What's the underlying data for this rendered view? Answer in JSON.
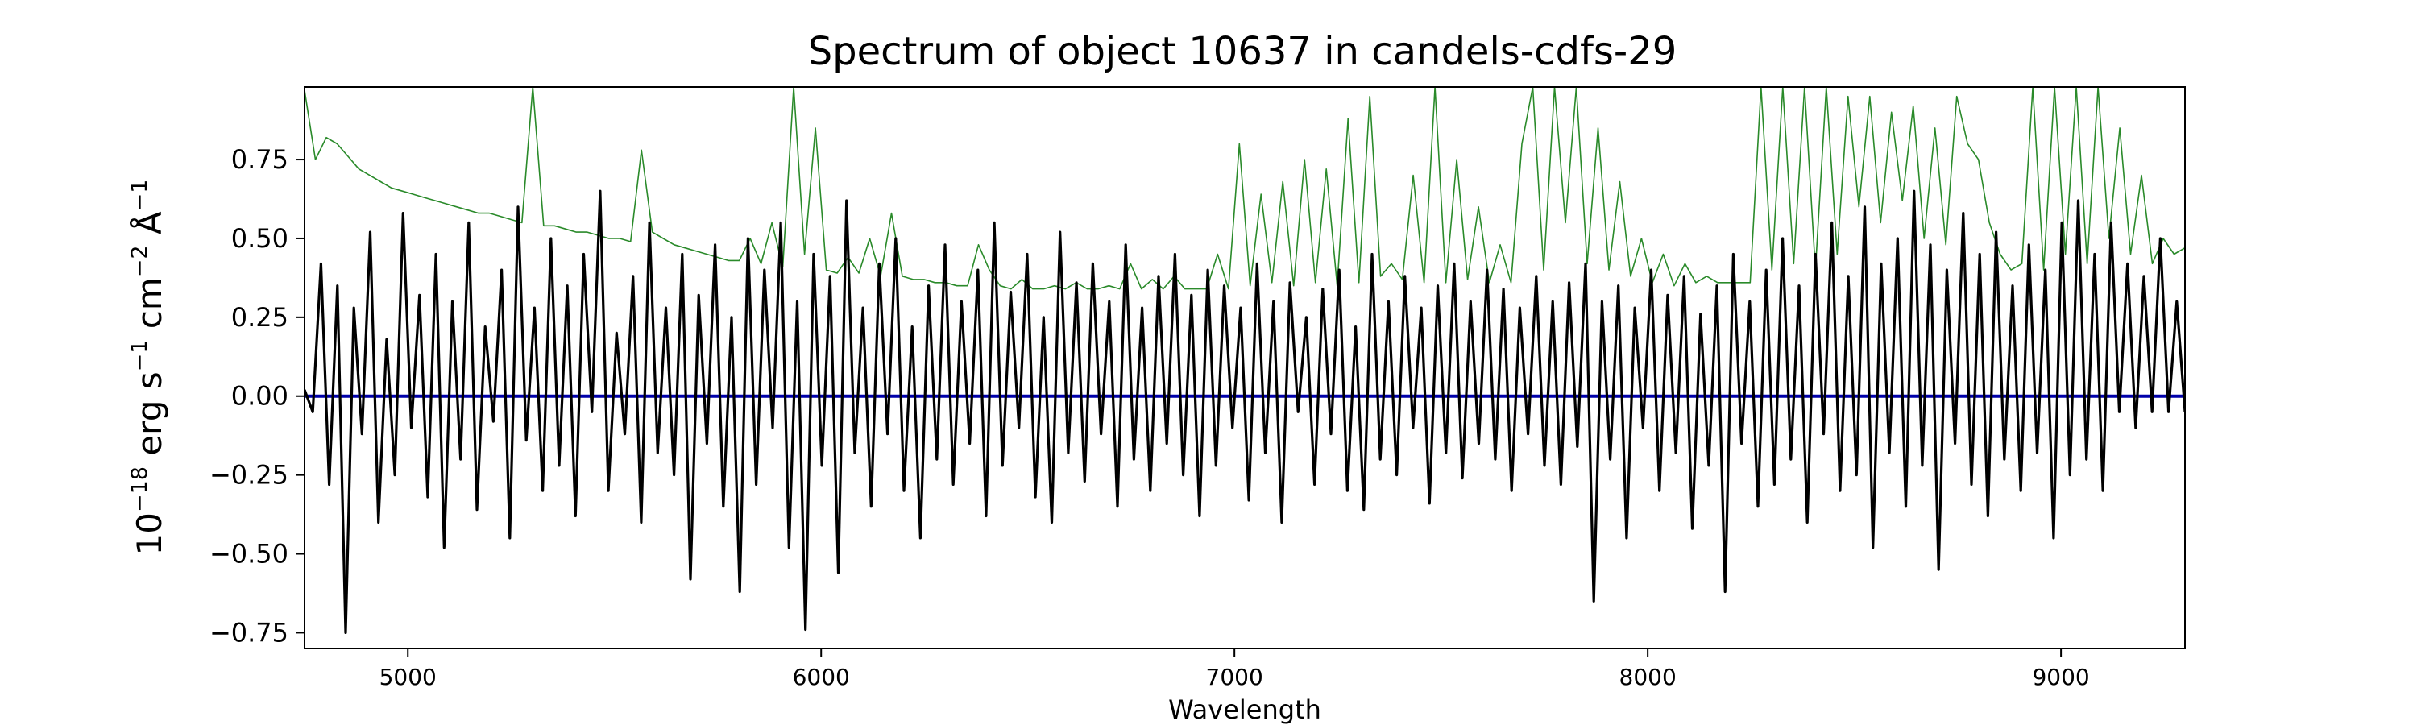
{
  "chart_data": {
    "type": "line",
    "title": "Spectrum of object 10637 in candels-cdfs-29",
    "xlabel": "Wavelength",
    "ylabel": {
      "base": "10",
      "exp1": "−18",
      "erg": " erg s",
      "exp2": "−1",
      "cm": " cm",
      "exp3": "−2",
      "ang": " Å",
      "exp4": "−1"
    },
    "xlim": [
      4750,
      9300
    ],
    "ylim": [
      -0.8,
      0.98
    ],
    "xticks": [
      5000,
      6000,
      7000,
      8000,
      9000
    ],
    "xtick_labels": [
      "5000",
      "6000",
      "7000",
      "8000",
      "9000"
    ],
    "yticks": [
      -0.75,
      -0.5,
      -0.25,
      0.0,
      0.25,
      0.5,
      0.75
    ],
    "ytick_labels": [
      "−0.75",
      "−0.50",
      "−0.25",
      "0.00",
      "0.25",
      "0.50",
      "0.75"
    ],
    "grid": false,
    "series": [
      {
        "role": "flux",
        "color": "#000000",
        "x_start": 4750,
        "x_end": 9300,
        "values": [
          0.02,
          -0.05,
          0.42,
          -0.28,
          0.35,
          -0.75,
          0.28,
          -0.12,
          0.52,
          -0.4,
          0.18,
          -0.25,
          0.58,
          -0.1,
          0.32,
          -0.32,
          0.45,
          -0.48,
          0.3,
          -0.2,
          0.55,
          -0.36,
          0.22,
          -0.08,
          0.4,
          -0.45,
          0.6,
          -0.14,
          0.28,
          -0.3,
          0.5,
          -0.22,
          0.35,
          -0.38,
          0.45,
          -0.05,
          0.65,
          -0.3,
          0.2,
          -0.12,
          0.38,
          -0.4,
          0.55,
          -0.18,
          0.28,
          -0.25,
          0.45,
          -0.58,
          0.32,
          -0.15,
          0.48,
          -0.35,
          0.25,
          -0.62,
          0.5,
          -0.28,
          0.4,
          -0.1,
          0.55,
          -0.48,
          0.3,
          -0.74,
          0.45,
          -0.22,
          0.38,
          -0.56,
          0.62,
          -0.18,
          0.28,
          -0.35,
          0.42,
          -0.12,
          0.5,
          -0.3,
          0.22,
          -0.45,
          0.35,
          -0.2,
          0.48,
          -0.28,
          0.3,
          -0.15,
          0.4,
          -0.38,
          0.55,
          -0.22,
          0.33,
          -0.1,
          0.45,
          -0.32,
          0.25,
          -0.4,
          0.52,
          -0.18,
          0.36,
          -0.27,
          0.42,
          -0.12,
          0.3,
          -0.35,
          0.48,
          -0.2,
          0.28,
          -0.3,
          0.38,
          -0.15,
          0.45,
          -0.25,
          0.32,
          -0.38,
          0.4,
          -0.22,
          0.35,
          -0.1,
          0.28,
          -0.33,
          0.42,
          -0.18,
          0.3,
          -0.4,
          0.36,
          -0.05,
          0.25,
          -0.28,
          0.34,
          -0.12,
          0.4,
          -0.3,
          0.22,
          -0.36,
          0.45,
          -0.2,
          0.3,
          -0.25,
          0.38,
          -0.1,
          0.28,
          -0.34,
          0.35,
          -0.18,
          0.42,
          -0.26,
          0.3,
          -0.15,
          0.4,
          -0.2,
          0.34,
          -0.3,
          0.28,
          -0.12,
          0.38,
          -0.22,
          0.3,
          -0.28,
          0.36,
          -0.16,
          0.42,
          -0.65,
          0.3,
          -0.2,
          0.35,
          -0.45,
          0.28,
          -0.1,
          0.4,
          -0.3,
          0.32,
          -0.18,
          0.38,
          -0.42,
          0.26,
          -0.22,
          0.35,
          -0.62,
          0.45,
          -0.15,
          0.3,
          -0.35,
          0.4,
          -0.28,
          0.5,
          -0.2,
          0.35,
          -0.4,
          0.45,
          -0.12,
          0.55,
          -0.3,
          0.38,
          -0.25,
          0.6,
          -0.48,
          0.42,
          -0.18,
          0.5,
          -0.35,
          0.65,
          -0.22,
          0.48,
          -0.55,
          0.4,
          -0.15,
          0.58,
          -0.28,
          0.45,
          -0.38,
          0.52,
          -0.2,
          0.35,
          -0.3,
          0.48,
          -0.18,
          0.4,
          -0.45,
          0.55,
          -0.25,
          0.62,
          -0.2,
          0.45,
          -0.3,
          0.55,
          -0.05,
          0.42,
          -0.1,
          0.38,
          -0.05,
          0.5,
          -0.05,
          0.3,
          -0.05
        ]
      },
      {
        "role": "error",
        "color": "#2a8a2a",
        "x_start": 4750,
        "x_end": 9300,
        "values": [
          0.97,
          0.75,
          0.82,
          0.8,
          0.76,
          0.72,
          0.7,
          0.68,
          0.66,
          0.65,
          0.64,
          0.63,
          0.62,
          0.61,
          0.6,
          0.59,
          0.58,
          0.58,
          0.57,
          0.56,
          0.55,
          0.98,
          0.54,
          0.54,
          0.53,
          0.52,
          0.52,
          0.51,
          0.5,
          0.5,
          0.49,
          0.78,
          0.52,
          0.5,
          0.48,
          0.47,
          0.46,
          0.45,
          0.44,
          0.43,
          0.43,
          0.5,
          0.42,
          0.55,
          0.41,
          0.98,
          0.45,
          0.85,
          0.4,
          0.39,
          0.44,
          0.39,
          0.5,
          0.38,
          0.58,
          0.38,
          0.37,
          0.37,
          0.36,
          0.36,
          0.35,
          0.35,
          0.48,
          0.4,
          0.35,
          0.34,
          0.37,
          0.34,
          0.34,
          0.35,
          0.34,
          0.36,
          0.34,
          0.34,
          0.35,
          0.34,
          0.42,
          0.34,
          0.37,
          0.34,
          0.38,
          0.34,
          0.34,
          0.34,
          0.45,
          0.34,
          0.8,
          0.35,
          0.64,
          0.36,
          0.68,
          0.35,
          0.75,
          0.36,
          0.72,
          0.35,
          0.88,
          0.36,
          0.95,
          0.38,
          0.42,
          0.37,
          0.7,
          0.36,
          0.98,
          0.36,
          0.75,
          0.37,
          0.6,
          0.36,
          0.48,
          0.36,
          0.8,
          0.98,
          0.4,
          0.98,
          0.55,
          0.98,
          0.42,
          0.85,
          0.4,
          0.68,
          0.38,
          0.5,
          0.36,
          0.45,
          0.35,
          0.42,
          0.36,
          0.38,
          0.36,
          0.36,
          0.36,
          0.36,
          0.98,
          0.4,
          0.98,
          0.42,
          0.98,
          0.4,
          0.98,
          0.45,
          0.95,
          0.6,
          0.95,
          0.55,
          0.9,
          0.62,
          0.92,
          0.5,
          0.85,
          0.48,
          0.95,
          0.8,
          0.75,
          0.55,
          0.45,
          0.4,
          0.42,
          0.98,
          0.4,
          0.98,
          0.45,
          0.98,
          0.42,
          0.98,
          0.5,
          0.85,
          0.45,
          0.7,
          0.42,
          0.5,
          0.45,
          0.47
        ]
      },
      {
        "role": "model",
        "color": "#0000aa",
        "x_start": 4750,
        "x_end": 9300,
        "values": [
          0,
          0
        ]
      }
    ]
  }
}
